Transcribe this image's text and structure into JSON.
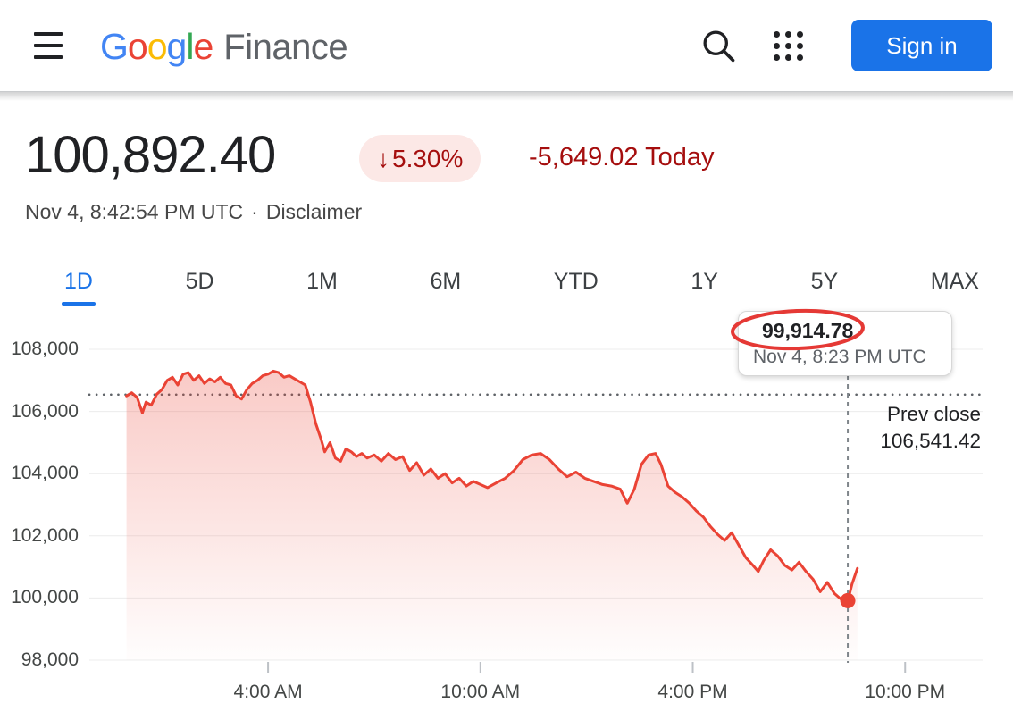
{
  "header": {
    "logo": {
      "google_letters": [
        {
          "char": "G",
          "color": "#4285F4"
        },
        {
          "char": "o",
          "color": "#EA4335"
        },
        {
          "char": "o",
          "color": "#FBBC05"
        },
        {
          "char": "g",
          "color": "#4285F4"
        },
        {
          "char": "l",
          "color": "#34A853"
        },
        {
          "char": "e",
          "color": "#EA4335"
        }
      ],
      "product": "Finance"
    },
    "sign_in_label": "Sign in"
  },
  "quote": {
    "price": "100,892.40",
    "badge": {
      "arrow": "↓",
      "percent": "5.30%"
    },
    "change_text": "-5,649.02 Today",
    "timestamp": "Nov 4, 8:42:54 PM UTC",
    "dot_separator": "·",
    "disclaimer_label": "Disclaimer"
  },
  "range_tabs": [
    {
      "label": "1D",
      "active": true
    },
    {
      "label": "5D",
      "active": false
    },
    {
      "label": "1M",
      "active": false
    },
    {
      "label": "6M",
      "active": false
    },
    {
      "label": "YTD",
      "active": false
    },
    {
      "label": "1Y",
      "active": false
    },
    {
      "label": "5Y",
      "active": false
    },
    {
      "label": "MAX",
      "active": false
    }
  ],
  "tooltip": {
    "value": "99,914.78",
    "time": "Nov 4, 8:23 PM UTC"
  },
  "prev_close_label": {
    "line1": "Prev close",
    "line2": "106,541.42"
  },
  "colors": {
    "accent_blue": "#1a73e8",
    "down_red": "#a50e0e",
    "badge_bg": "#fce8e6",
    "line_red": "#ea4335",
    "text_primary": "#202124",
    "text_secondary": "#5f6368"
  },
  "chart_data": {
    "type": "area",
    "title": "",
    "xlabel": "",
    "ylabel": "",
    "grid": true,
    "legend": false,
    "y_range": [
      98000,
      108000
    ],
    "x_range_hours": [
      0,
      24
    ],
    "y_ticks": [
      {
        "value": 98000,
        "label": "98,000"
      },
      {
        "value": 100000,
        "label": "100,000"
      },
      {
        "value": 102000,
        "label": "102,000"
      },
      {
        "value": 104000,
        "label": "104,000"
      },
      {
        "value": 106000,
        "label": "106,000"
      },
      {
        "value": 108000,
        "label": "108,000"
      }
    ],
    "x_ticks": [
      {
        "hour": 4,
        "label": "4:00 AM"
      },
      {
        "hour": 10,
        "label": "10:00 AM"
      },
      {
        "hour": 16,
        "label": "4:00 PM"
      },
      {
        "hour": 22,
        "label": "10:00 PM"
      }
    ],
    "prev_close": 106541.42,
    "cursor": {
      "hour": 20.38,
      "price": 99914.78
    },
    "line_color": "#ea4335",
    "series": [
      {
        "name": "price",
        "points": [
          [
            0.0,
            106500
          ],
          [
            0.15,
            106600
          ],
          [
            0.3,
            106450
          ],
          [
            0.45,
            105950
          ],
          [
            0.55,
            106300
          ],
          [
            0.7,
            106200
          ],
          [
            0.85,
            106550
          ],
          [
            1.0,
            106700
          ],
          [
            1.15,
            107000
          ],
          [
            1.3,
            107100
          ],
          [
            1.45,
            106850
          ],
          [
            1.6,
            107200
          ],
          [
            1.75,
            107250
          ],
          [
            1.9,
            107000
          ],
          [
            2.05,
            107150
          ],
          [
            2.2,
            106900
          ],
          [
            2.35,
            107050
          ],
          [
            2.5,
            106950
          ],
          [
            2.65,
            107100
          ],
          [
            2.8,
            106900
          ],
          [
            2.95,
            106850
          ],
          [
            3.1,
            106500
          ],
          [
            3.25,
            106400
          ],
          [
            3.4,
            106700
          ],
          [
            3.55,
            106900
          ],
          [
            3.7,
            107000
          ],
          [
            3.85,
            107150
          ],
          [
            4.0,
            107200
          ],
          [
            4.15,
            107300
          ],
          [
            4.3,
            107250
          ],
          [
            4.45,
            107100
          ],
          [
            4.6,
            107150
          ],
          [
            4.75,
            107050
          ],
          [
            4.9,
            106950
          ],
          [
            5.05,
            106850
          ],
          [
            5.2,
            106300
          ],
          [
            5.35,
            105600
          ],
          [
            5.5,
            105100
          ],
          [
            5.6,
            104700
          ],
          [
            5.75,
            105000
          ],
          [
            5.9,
            104500
          ],
          [
            6.05,
            104400
          ],
          [
            6.2,
            104800
          ],
          [
            6.35,
            104700
          ],
          [
            6.5,
            104550
          ],
          [
            6.65,
            104650
          ],
          [
            6.8,
            104500
          ],
          [
            7.0,
            104600
          ],
          [
            7.2,
            104400
          ],
          [
            7.4,
            104650
          ],
          [
            7.6,
            104450
          ],
          [
            7.8,
            104550
          ],
          [
            8.0,
            104100
          ],
          [
            8.2,
            104350
          ],
          [
            8.4,
            103950
          ],
          [
            8.6,
            104150
          ],
          [
            8.8,
            103850
          ],
          [
            9.0,
            104000
          ],
          [
            9.2,
            103700
          ],
          [
            9.4,
            103850
          ],
          [
            9.6,
            103600
          ],
          [
            9.8,
            103750
          ],
          [
            10.0,
            103650
          ],
          [
            10.2,
            103550
          ],
          [
            10.45,
            103700
          ],
          [
            10.7,
            103850
          ],
          [
            10.95,
            104100
          ],
          [
            11.2,
            104450
          ],
          [
            11.45,
            104600
          ],
          [
            11.7,
            104650
          ],
          [
            11.95,
            104450
          ],
          [
            12.2,
            104150
          ],
          [
            12.45,
            103900
          ],
          [
            12.7,
            104050
          ],
          [
            12.95,
            103850
          ],
          [
            13.2,
            103750
          ],
          [
            13.45,
            103650
          ],
          [
            13.7,
            103600
          ],
          [
            13.95,
            103500
          ],
          [
            14.15,
            103050
          ],
          [
            14.35,
            103500
          ],
          [
            14.55,
            104300
          ],
          [
            14.75,
            104600
          ],
          [
            14.95,
            104650
          ],
          [
            15.1,
            104300
          ],
          [
            15.3,
            103600
          ],
          [
            15.5,
            103400
          ],
          [
            15.7,
            103250
          ],
          [
            15.9,
            103050
          ],
          [
            16.1,
            102800
          ],
          [
            16.3,
            102600
          ],
          [
            16.5,
            102300
          ],
          [
            16.7,
            102050
          ],
          [
            16.9,
            101850
          ],
          [
            17.1,
            102100
          ],
          [
            17.3,
            101700
          ],
          [
            17.5,
            101300
          ],
          [
            17.7,
            101050
          ],
          [
            17.85,
            100850
          ],
          [
            18.0,
            101200
          ],
          [
            18.2,
            101550
          ],
          [
            18.4,
            101350
          ],
          [
            18.6,
            101050
          ],
          [
            18.8,
            100900
          ],
          [
            19.0,
            101150
          ],
          [
            19.2,
            100850
          ],
          [
            19.4,
            100600
          ],
          [
            19.6,
            100200
          ],
          [
            19.8,
            100500
          ],
          [
            20.0,
            100150
          ],
          [
            20.2,
            99950
          ],
          [
            20.38,
            99914.78
          ],
          [
            20.5,
            100450
          ],
          [
            20.65,
            100950
          ]
        ]
      }
    ]
  }
}
